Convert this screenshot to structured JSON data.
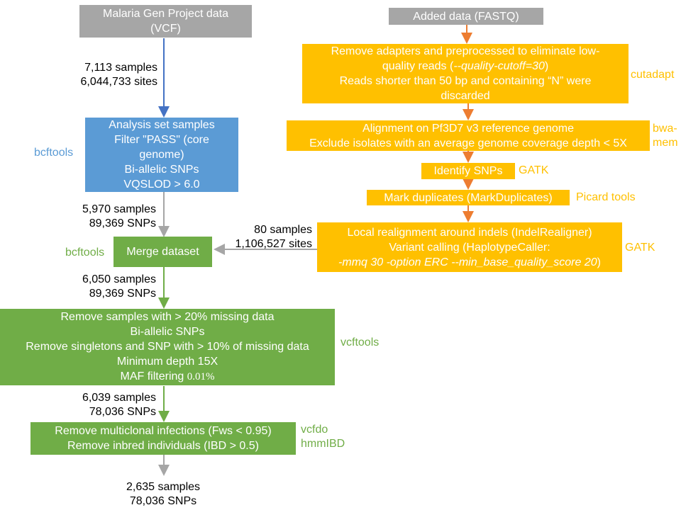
{
  "colors": {
    "grey": "#a6a6a6",
    "blue": "#5b9bd5",
    "green": "#70ad47",
    "orange": "#ffc000",
    "orange_arrow": "#ed7d31"
  },
  "left": {
    "source_box": {
      "lines": [
        "Malaria Gen Project data",
        "(VCF)"
      ]
    },
    "label_1": {
      "lines": [
        "7,113 samples",
        "6,044,733 sites"
      ]
    },
    "filter_box": {
      "lines": [
        "Analysis set samples",
        "Filter \"PASS\" (core",
        "genome)",
        "Bi-allelic SNPs",
        "VQSLOD > 6.0"
      ]
    },
    "filter_tool": "bcftools",
    "label_2": {
      "lines": [
        "5,970 samples",
        "89,369 SNPs"
      ]
    },
    "merge_box": {
      "lines": [
        "Merge dataset"
      ]
    },
    "merge_tool": "bcftools",
    "label_3": {
      "lines": [
        "6,050 samples",
        "89,369 SNPs"
      ]
    },
    "qc_box": {
      "lines": [
        "Remove samples with > 20% missing data",
        "Bi-allelic SNPs",
        "Remove singletons and SNP with > 10% of missing data",
        "Minimum depth 15X"
      ],
      "maf_text": "MAF filtering",
      "maf_value": "0.01%"
    },
    "qc_tool": "vcftools",
    "label_4": {
      "lines": [
        "6,039 samples",
        "78,036 SNPs"
      ]
    },
    "final_box": {
      "lines": [
        "Remove multiclonal infections (Fws < 0.95)",
        "Remove inbred individuals (IBD > 0.5)"
      ]
    },
    "final_tools": [
      "vcfdo",
      "hmmIBD"
    ],
    "label_5": {
      "lines": [
        "2,635 samples",
        "78,036 SNPs"
      ]
    }
  },
  "right": {
    "source_box": {
      "lines": [
        "Added data (FASTQ)"
      ]
    },
    "cutadapt_box": {
      "lines": [
        "Remove adapters and preprocessed to eliminate low-",
        "quality reads (",
        "Reads shorter than 50 bp and containing “N” were",
        "discarded"
      ],
      "param": "--quality-cutoff=30",
      "param_close": ")"
    },
    "cutadapt_tool": "cutadapt",
    "align_box": {
      "lines": [
        "Alignment on Pf3D7 v3 reference genome",
        "Exclude isolates with an average genome coverage depth < 5X"
      ]
    },
    "align_tool": [
      "bwa-",
      "mem"
    ],
    "snp_box": {
      "lines": [
        "Identify SNPs"
      ]
    },
    "snp_tool": "GATK",
    "dup_box": {
      "lines": [
        "Mark duplicates (MarkDuplicates)"
      ]
    },
    "dup_tool": "Picard tools",
    "call_box": {
      "lines": [
        "Local realignment around indels (IndelRealigner)",
        "Variant calling (HaplotypeCaller:"
      ],
      "params": "-mmq 30 -option ERC --min_base_quality_score 20",
      "params_close": ")"
    },
    "call_tool": "GATK",
    "merge_label": {
      "lines": [
        "80 samples",
        "1,106,527 sites"
      ]
    }
  }
}
